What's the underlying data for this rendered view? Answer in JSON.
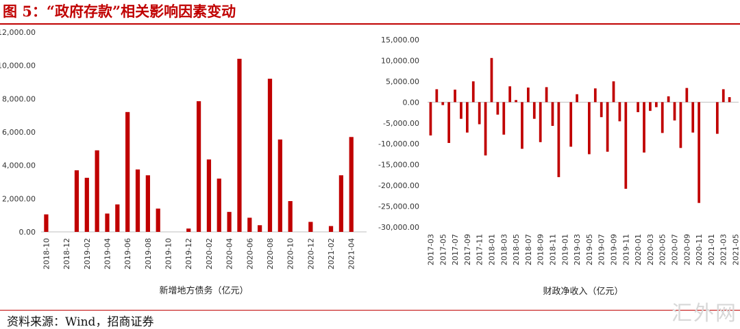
{
  "figure": {
    "title": "图 5：“政府存款”相关影响因素变动",
    "source": "资料来源：Wind，招商证券",
    "watermark": "汇外网",
    "bar_color": "#c00000"
  },
  "chart_data": [
    {
      "type": "bar",
      "xlabel": "新增地方债务（亿元）",
      "ylabel": "",
      "ylim": [
        0,
        12000
      ],
      "yticks": [
        "0.00",
        "2,000.00",
        "4,000.00",
        "6,000.00",
        "8,000.00",
        "10,000.00",
        "12,000.00"
      ],
      "categories": [
        "2018-10",
        "2018-11",
        "2018-12",
        "2019-01",
        "2019-02",
        "2019-03",
        "2019-04",
        "2019-05",
        "2019-06",
        "2019-07",
        "2019-08",
        "2019-09",
        "2019-10",
        "2019-11",
        "2019-12",
        "2020-01",
        "2020-02",
        "2020-03",
        "2020-04",
        "2020-05",
        "2020-06",
        "2020-07",
        "2020-08",
        "2020-09",
        "2020-10",
        "2020-11",
        "2020-12",
        "2021-01",
        "2021-02",
        "2021-03",
        "2021-04",
        "2021-05"
      ],
      "tick_labels": [
        "2018-10",
        "2018-12",
        "2019-02",
        "2019-04",
        "2019-06",
        "2019-08",
        "2019-10",
        "2019-12",
        "2020-02",
        "2020-04",
        "2020-06",
        "2020-08",
        "2020-10",
        "2020-12",
        "2021-02",
        "2021-04"
      ],
      "values": [
        1050,
        0,
        0,
        3700,
        3250,
        4900,
        1100,
        1650,
        7200,
        3750,
        3400,
        1400,
        0,
        0,
        200,
        7850,
        4350,
        3200,
        1200,
        10400,
        850,
        400,
        9200,
        5550,
        1850,
        0,
        600,
        0,
        350,
        3400,
        5700,
        0
      ]
    },
    {
      "type": "bar",
      "xlabel": "财政净收入（亿元）",
      "ylabel": "",
      "ylim": [
        -30000,
        15000
      ],
      "yticks": [
        "-30,000.00",
        "-25,000.00",
        "-20,000.00",
        "-15,000.00",
        "-10,000.00",
        "-5,000.00",
        "0.00",
        "5,000.00",
        "10,000.00",
        "15,000.00"
      ],
      "categories": [
        "2017-03",
        "2017-04",
        "2017-05",
        "2017-06",
        "2017-07",
        "2017-08",
        "2017-09",
        "2017-10",
        "2017-11",
        "2017-12",
        "2018-01",
        "2018-02",
        "2018-03",
        "2018-04",
        "2018-05",
        "2018-06",
        "2018-07",
        "2018-08",
        "2018-09",
        "2018-10",
        "2018-11",
        "2018-12",
        "2019-01",
        "2019-02",
        "2019-03",
        "2019-04",
        "2019-05",
        "2019-06",
        "2019-07",
        "2019-08",
        "2019-09",
        "2019-10",
        "2019-11",
        "2019-12",
        "2020-01",
        "2020-02",
        "2020-03",
        "2020-04",
        "2020-05",
        "2020-06",
        "2020-07",
        "2020-08",
        "2020-09",
        "2020-10",
        "2020-11",
        "2020-12",
        "2021-01",
        "2021-02",
        "2021-03",
        "2021-04",
        "2021-05"
      ],
      "tick_labels": [
        "2017-03",
        "2017-05",
        "2017-07",
        "2017-09",
        "2017-11",
        "2018-01",
        "2018-03",
        "2018-05",
        "2018-07",
        "2018-09",
        "2018-11",
        "2019-01",
        "2019-03",
        "2019-05",
        "2019-07",
        "2019-09",
        "2019-11",
        "2020-01",
        "2020-03",
        "2020-05",
        "2020-07",
        "2020-09",
        "2020-11",
        "2021-01",
        "2021-03",
        "2021-05"
      ],
      "values": [
        -8000,
        3100,
        -700,
        -9800,
        3000,
        -4000,
        -7300,
        5000,
        -5300,
        -12800,
        10600,
        -3000,
        -7800,
        3800,
        500,
        -11200,
        3500,
        -4000,
        -9600,
        3600,
        -5700,
        -18000,
        0,
        -10700,
        1900,
        0,
        -12500,
        3300,
        -3600,
        -11900,
        5000,
        -4600,
        -20800,
        0,
        -2400,
        -12100,
        -2100,
        -1200,
        -7400,
        1400,
        -4400,
        -11000,
        3400,
        -7300,
        -24200,
        0,
        0,
        -7600,
        3100,
        1200,
        0
      ]
    }
  ]
}
